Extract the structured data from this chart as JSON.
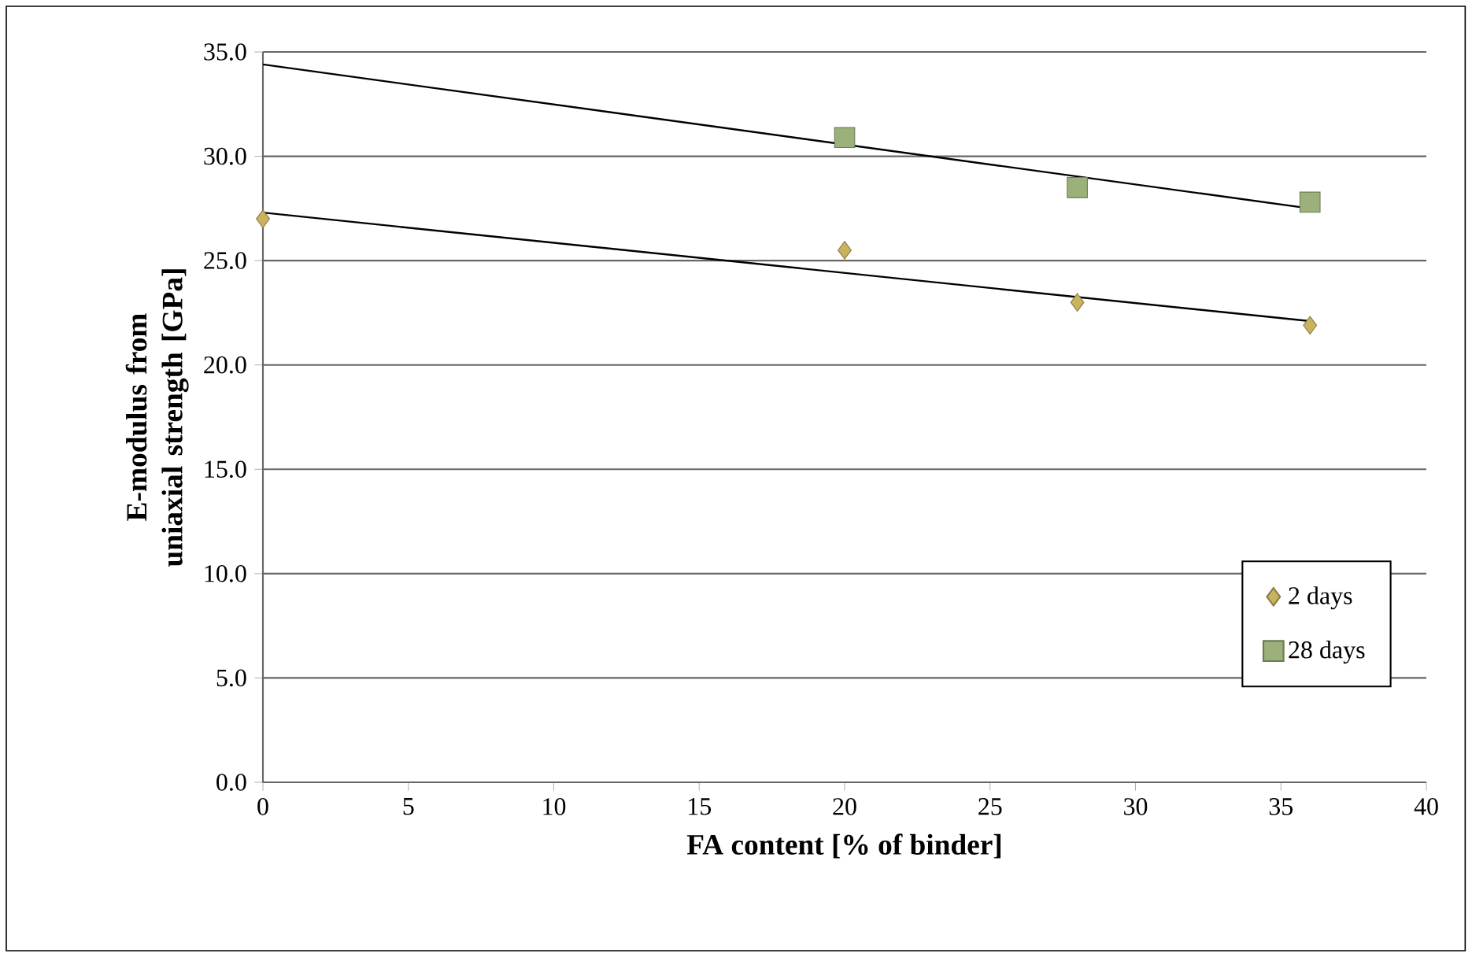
{
  "chart_data": {
    "type": "scatter",
    "xlabel": "FA content [% of binder]",
    "ylabel": "E-modulus from uniaxial strength [GPa]",
    "xlim": [
      0,
      40
    ],
    "xticks": [
      0,
      5,
      10,
      15,
      20,
      25,
      30,
      35,
      40
    ],
    "ylim": [
      0,
      35
    ],
    "yticks": [
      {
        "value": 0,
        "label": "0.0"
      },
      {
        "value": 5,
        "label": "5.0"
      },
      {
        "value": 10,
        "label": "10.0"
      },
      {
        "value": 15,
        "label": "15.0"
      },
      {
        "value": 20,
        "label": "20.0"
      },
      {
        "value": 25,
        "label": "25.0"
      },
      {
        "value": 30,
        "label": "30.0"
      },
      {
        "value": 35,
        "label": "35.0"
      }
    ],
    "grid": "y",
    "legend": "bottom right",
    "series": [
      {
        "name": "2 days",
        "color": "#c9b35e",
        "marker": "diamond",
        "x": [
          0,
          20,
          28,
          36
        ],
        "values": [
          27.0,
          25.5,
          23.0,
          21.9
        ]
      },
      {
        "name": "28 days",
        "color": "#9bb07a",
        "marker": "square",
        "x": [
          20,
          28,
          36
        ],
        "values": [
          30.9,
          28.5,
          27.8
        ]
      },
      {
        "type": "line",
        "color": "#000000",
        "marker": "none",
        "x": [
          0,
          36
        ],
        "values": [
          27.3,
          22.1
        ]
      },
      {
        "type": "line",
        "color": "#000000",
        "marker": "none",
        "x": [
          0,
          36
        ],
        "values": [
          34.4,
          27.5
        ]
      }
    ]
  }
}
